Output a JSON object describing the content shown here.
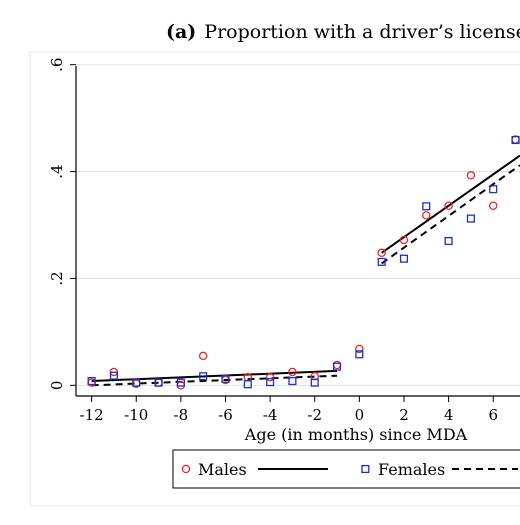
{
  "chart_data": {
    "type": "scatter",
    "title_prefix": "(a)",
    "title": "Proportion with a driver’s license",
    "xlabel": "Age (in months) since MDA",
    "ylabel": "",
    "xlim": [
      -12.7,
      7.2
    ],
    "ylim": [
      -0.02,
      0.62
    ],
    "x_ticks": [
      -12,
      -10,
      -8,
      -6,
      -4,
      -2,
      0,
      2,
      4,
      6
    ],
    "x_tick_labels": [
      "-12",
      "-10",
      "-8",
      "-6",
      "-4",
      "-2",
      "0",
      "2",
      "4",
      "6"
    ],
    "y_ticks": [
      0,
      0.2,
      0.4,
      0.6
    ],
    "y_tick_labels": [
      "0",
      ".2",
      ".4",
      ".6"
    ],
    "grid": true,
    "legend_position": "bottom",
    "series": [
      {
        "name": "Males",
        "marker": "circle",
        "color": "#e8262a",
        "x": [
          -12,
          -11,
          -10,
          -9,
          -8,
          -7,
          -6,
          -5,
          -4,
          -3,
          -2,
          -1,
          0,
          1,
          2,
          3,
          4,
          5,
          6,
          7
        ],
        "y": [
          0.005,
          0.025,
          0.003,
          0.005,
          0.0,
          0.055,
          0.01,
          0.015,
          0.015,
          0.025,
          0.017,
          0.038,
          0.068,
          0.248,
          0.272,
          0.318,
          0.336,
          0.393,
          0.336,
          0.46
        ]
      },
      {
        "name": "Females",
        "marker": "square",
        "color": "#1a2fd0",
        "x": [
          -12,
          -11,
          -10,
          -9,
          -8,
          -7,
          -6,
          -5,
          -4,
          -3,
          -2,
          -1,
          0,
          1,
          2,
          3,
          4,
          5,
          6,
          7
        ],
        "y": [
          0.008,
          0.018,
          0.005,
          0.005,
          0.005,
          0.017,
          0.012,
          0.002,
          0.006,
          0.008,
          0.005,
          0.035,
          0.058,
          0.231,
          0.237,
          0.335,
          0.27,
          0.312,
          0.367,
          0.459
        ]
      }
    ],
    "fit_lines": [
      {
        "name": "Males fit",
        "style": "solid",
        "segments": [
          {
            "x": [
              -12,
              -1
            ],
            "y": [
              0.008,
              0.027
            ]
          },
          {
            "x": [
              1,
              7.2
            ],
            "y": [
              0.248,
              0.43
            ]
          }
        ]
      },
      {
        "name": "Females fit",
        "style": "dashed",
        "segments": [
          {
            "x": [
              -12,
              -1
            ],
            "y": [
              0.0,
              0.018
            ]
          },
          {
            "x": [
              1,
              7.2
            ],
            "y": [
              0.228,
              0.412
            ]
          }
        ]
      }
    ],
    "legend": [
      {
        "label": "Males",
        "symbol": "circle",
        "color": "#e8262a"
      },
      {
        "label": "",
        "symbol": "solid-line",
        "color": "#000000"
      },
      {
        "label": "Females",
        "symbol": "square",
        "color": "#1a2fd0"
      },
      {
        "label": "",
        "symbol": "dashed-line",
        "color": "#000000"
      }
    ]
  }
}
